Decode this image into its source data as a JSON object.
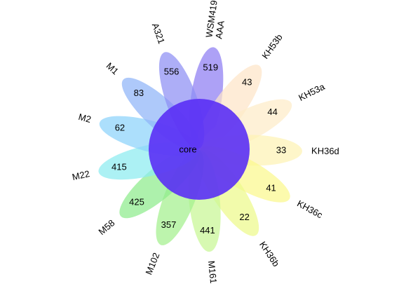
{
  "diagram": {
    "type": "flower-venn",
    "core": {
      "label": "core",
      "color": "#5a2ff5"
    },
    "petals": [
      {
        "name": "WSM419\nAAA",
        "count": "519",
        "color": "#8e7df2"
      },
      {
        "name": "KH53b",
        "count": "43",
        "color": "#fde4c8"
      },
      {
        "name": "KH53a",
        "count": "44",
        "color": "#fdebc7"
      },
      {
        "name": "KH36d",
        "count": "33",
        "color": "#fdf3b4"
      },
      {
        "name": "KH36c",
        "count": "41",
        "color": "#fbf88e"
      },
      {
        "name": "KH36b",
        "count": "22",
        "color": "#edf98a"
      },
      {
        "name": "M161",
        "count": "441",
        "color": "#c8f694"
      },
      {
        "name": "M102",
        "count": "357",
        "color": "#a4f08e"
      },
      {
        "name": "M58",
        "count": "425",
        "color": "#8eec8c"
      },
      {
        "name": "M22",
        "count": "415",
        "color": "#8cebf0"
      },
      {
        "name": "M2",
        "count": "62",
        "color": "#8cd2fb"
      },
      {
        "name": "M1",
        "count": "83",
        "color": "#8fb4f8"
      },
      {
        "name": "A321",
        "count": "556",
        "color": "#8e8ff4"
      }
    ]
  }
}
